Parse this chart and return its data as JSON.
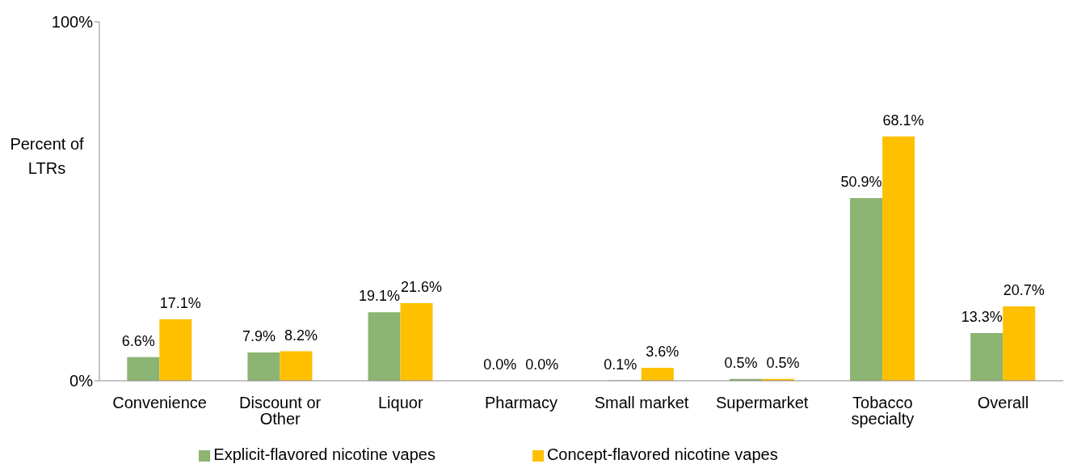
{
  "chart_data": {
    "type": "bar",
    "ylabel": "Percent of LTRs",
    "categories": [
      "Convenience",
      "Discount or Other",
      "Liquor",
      "Pharmacy",
      "Small market",
      "Supermarket",
      "Tobacco specialty",
      "Overall"
    ],
    "series": [
      {
        "name": "Explicit-flavored nicotine vapes",
        "color": "#8cb472",
        "values": [
          6.6,
          7.9,
          19.1,
          0.0,
          0.1,
          0.5,
          50.9,
          13.3
        ],
        "value_labels": [
          "6.6%",
          "7.9%",
          "19.1%",
          "0.0%",
          "0.1%",
          "0.5%",
          "50.9%",
          "13.3%"
        ]
      },
      {
        "name": "Concept-flavored nicotine vapes",
        "color": "#ffc000",
        "values": [
          17.1,
          8.2,
          21.6,
          0.0,
          3.6,
          0.5,
          68.1,
          20.7
        ],
        "value_labels": [
          "17.1%",
          "8.2%",
          "21.6%",
          "0.0%",
          "3.6%",
          "0.5%",
          "68.1%",
          "20.7%"
        ]
      }
    ],
    "ylim": [
      0,
      100
    ],
    "yticks": [
      {
        "value": 0,
        "label": "0%"
      },
      {
        "value": 100,
        "label": "100%"
      }
    ],
    "grid": false,
    "legend": "bottom"
  }
}
